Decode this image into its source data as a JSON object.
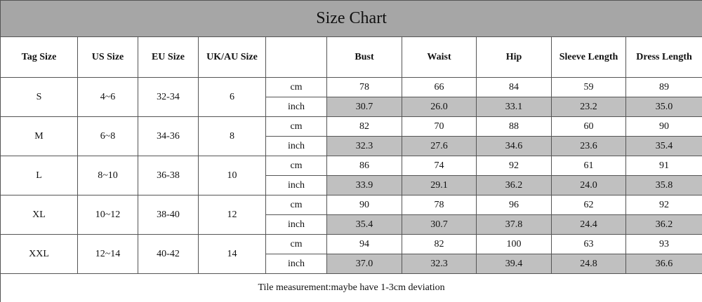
{
  "title": "Size Chart",
  "columns": [
    "Tag Size",
    "US Size",
    "EU Size",
    "UK/AU Size"
  ],
  "measures": [
    "Bust",
    "Waist",
    "Hip",
    "Sleeve Length",
    "Dress Length"
  ],
  "units": [
    "cm",
    "inch"
  ],
  "rows": [
    {
      "tag": "S",
      "us": "4~6",
      "eu": "32-34",
      "uk": "6",
      "cm": [
        "78",
        "66",
        "84",
        "59",
        "89"
      ],
      "inch": [
        "30.7",
        "26.0",
        "33.1",
        "23.2",
        "35.0"
      ]
    },
    {
      "tag": "M",
      "us": "6~8",
      "eu": "34-36",
      "uk": "8",
      "cm": [
        "82",
        "70",
        "88",
        "60",
        "90"
      ],
      "inch": [
        "32.3",
        "27.6",
        "34.6",
        "23.6",
        "35.4"
      ]
    },
    {
      "tag": "L",
      "us": "8~10",
      "eu": "36-38",
      "uk": "10",
      "cm": [
        "86",
        "74",
        "92",
        "61",
        "91"
      ],
      "inch": [
        "33.9",
        "29.1",
        "36.2",
        "24.0",
        "35.8"
      ]
    },
    {
      "tag": "XL",
      "us": "10~12",
      "eu": "38-40",
      "uk": "12",
      "cm": [
        "90",
        "78",
        "96",
        "62",
        "92"
      ],
      "inch": [
        "35.4",
        "30.7",
        "37.8",
        "24.4",
        "36.2"
      ]
    },
    {
      "tag": "XXL",
      "us": "12~14",
      "eu": "40-42",
      "uk": "14",
      "cm": [
        "94",
        "82",
        "100",
        "63",
        "93"
      ],
      "inch": [
        "37.0",
        "32.3",
        "39.4",
        "24.8",
        "36.6"
      ]
    }
  ],
  "note": "Tile measurement:maybe have 1-3cm deviation"
}
